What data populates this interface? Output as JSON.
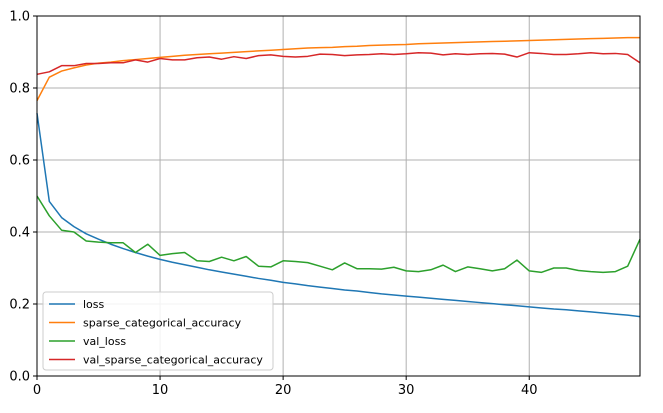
{
  "chart_data": {
    "type": "line",
    "title": "",
    "xlabel": "",
    "ylabel": "",
    "xlim": [
      0,
      49
    ],
    "ylim": [
      0.0,
      1.0
    ],
    "xticks": [
      0,
      10,
      20,
      30,
      40
    ],
    "yticks": [
      0.0,
      0.2,
      0.4,
      0.6,
      0.8,
      1.0
    ],
    "grid": true,
    "legend_placement": "lower-left",
    "x": [
      0,
      1,
      2,
      3,
      4,
      5,
      6,
      7,
      8,
      9,
      10,
      11,
      12,
      13,
      14,
      15,
      16,
      17,
      18,
      19,
      20,
      21,
      22,
      23,
      24,
      25,
      26,
      27,
      28,
      29,
      30,
      31,
      32,
      33,
      34,
      35,
      36,
      37,
      38,
      39,
      40,
      41,
      42,
      43,
      44,
      45,
      46,
      47,
      48,
      49
    ],
    "series": [
      {
        "name": "loss",
        "color": "#1f77b4",
        "values": [
          0.73,
          0.485,
          0.44,
          0.415,
          0.395,
          0.38,
          0.366,
          0.354,
          0.343,
          0.333,
          0.324,
          0.316,
          0.309,
          0.302,
          0.295,
          0.289,
          0.283,
          0.277,
          0.271,
          0.266,
          0.26,
          0.256,
          0.251,
          0.247,
          0.243,
          0.239,
          0.236,
          0.232,
          0.228,
          0.225,
          0.222,
          0.219,
          0.216,
          0.213,
          0.21,
          0.207,
          0.204,
          0.201,
          0.198,
          0.195,
          0.192,
          0.189,
          0.186,
          0.184,
          0.181,
          0.178,
          0.175,
          0.172,
          0.169,
          0.165
        ]
      },
      {
        "name": "sparse_categorical_accuracy",
        "color": "#ff7f0e",
        "values": [
          0.765,
          0.83,
          0.847,
          0.856,
          0.864,
          0.869,
          0.872,
          0.876,
          0.879,
          0.882,
          0.885,
          0.888,
          0.891,
          0.893,
          0.895,
          0.897,
          0.899,
          0.901,
          0.903,
          0.905,
          0.907,
          0.909,
          0.911,
          0.912,
          0.913,
          0.915,
          0.916,
          0.918,
          0.919,
          0.92,
          0.921,
          0.923,
          0.924,
          0.925,
          0.926,
          0.927,
          0.928,
          0.929,
          0.93,
          0.931,
          0.932,
          0.933,
          0.934,
          0.935,
          0.936,
          0.937,
          0.938,
          0.939,
          0.94,
          0.94
        ]
      },
      {
        "name": "val_loss",
        "color": "#2ca02c",
        "values": [
          0.5,
          0.445,
          0.405,
          0.4,
          0.375,
          0.372,
          0.37,
          0.37,
          0.343,
          0.366,
          0.335,
          0.34,
          0.343,
          0.32,
          0.318,
          0.33,
          0.32,
          0.332,
          0.305,
          0.303,
          0.32,
          0.318,
          0.315,
          0.305,
          0.295,
          0.314,
          0.298,
          0.298,
          0.297,
          0.302,
          0.292,
          0.29,
          0.295,
          0.308,
          0.29,
          0.303,
          0.298,
          0.292,
          0.298,
          0.322,
          0.292,
          0.288,
          0.3,
          0.3,
          0.293,
          0.29,
          0.288,
          0.29,
          0.305,
          0.38
        ]
      },
      {
        "name": "val_sparse_categorical_accuracy",
        "color": "#d62728",
        "values": [
          0.838,
          0.845,
          0.862,
          0.862,
          0.868,
          0.868,
          0.87,
          0.87,
          0.878,
          0.872,
          0.882,
          0.878,
          0.878,
          0.884,
          0.886,
          0.88,
          0.887,
          0.882,
          0.89,
          0.892,
          0.888,
          0.886,
          0.888,
          0.894,
          0.893,
          0.89,
          0.892,
          0.893,
          0.895,
          0.893,
          0.895,
          0.898,
          0.897,
          0.892,
          0.895,
          0.893,
          0.895,
          0.896,
          0.894,
          0.886,
          0.898,
          0.896,
          0.893,
          0.893,
          0.895,
          0.898,
          0.895,
          0.896,
          0.893,
          0.87
        ]
      }
    ]
  }
}
